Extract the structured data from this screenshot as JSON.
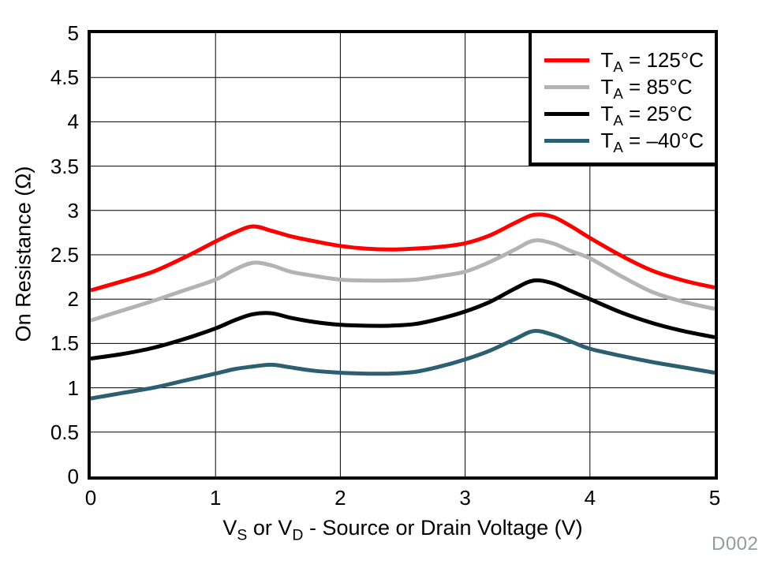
{
  "figure": {
    "id_label": "D002",
    "background": "#ffffff",
    "frame_color": "#000000",
    "gridline_color": "#000000"
  },
  "axes": {
    "x": {
      "title_parts": {
        "p1": "V",
        "s1": "S",
        "p2": " or V",
        "s2": "D",
        "p3": " - Source or Drain Voltage (V)"
      },
      "min": 0,
      "max": 5,
      "tick_labels": [
        "0",
        "1",
        "2",
        "3",
        "4",
        "5"
      ]
    },
    "y": {
      "title": "On Resistance (Ω)",
      "min": 0,
      "max": 5,
      "tick_labels": [
        "0",
        "0.5",
        "1",
        "1.5",
        "2",
        "2.5",
        "3",
        "3.5",
        "4",
        "4.5",
        "5"
      ]
    }
  },
  "legend": {
    "position": "top-right",
    "items": [
      {
        "name": "ta-125c",
        "prefix": "T",
        "sub": "A",
        "rest": " = 125°C",
        "color": "#ff0000"
      },
      {
        "name": "ta-85c",
        "prefix": "T",
        "sub": "A",
        "rest": " = 85°C",
        "color": "#b3b3b3"
      },
      {
        "name": "ta-25c",
        "prefix": "T",
        "sub": "A",
        "rest": " = 25°C",
        "color": "#000000"
      },
      {
        "name": "ta-minus40c",
        "prefix": "T",
        "sub": "A",
        "rest": " = –40°C",
        "color": "#2d5f73"
      }
    ]
  },
  "chart_data": {
    "type": "line",
    "title": "",
    "xlabel": "VS or VD - Source or Drain Voltage (V)",
    "ylabel": "On Resistance (Ω)",
    "xlim": [
      0,
      5
    ],
    "ylim": [
      0,
      5
    ],
    "x_tick_step": 1,
    "y_tick_step": 0.5,
    "grid": true,
    "legend_position": "top-right",
    "x": [
      0,
      0.25,
      0.5,
      0.75,
      1.0,
      1.15,
      1.3,
      1.45,
      1.6,
      1.8,
      2.0,
      2.2,
      2.4,
      2.6,
      2.8,
      3.0,
      3.2,
      3.4,
      3.55,
      3.7,
      3.85,
      4.0,
      4.25,
      4.5,
      4.75,
      5.0
    ],
    "series": [
      {
        "name": "TA = 125°C",
        "color": "#ff0000",
        "values": [
          2.1,
          2.2,
          2.31,
          2.47,
          2.65,
          2.75,
          2.82,
          2.77,
          2.71,
          2.65,
          2.6,
          2.57,
          2.56,
          2.57,
          2.59,
          2.63,
          2.72,
          2.86,
          2.95,
          2.93,
          2.82,
          2.69,
          2.49,
          2.32,
          2.21,
          2.13
        ]
      },
      {
        "name": "TA = 85°C",
        "color": "#b3b3b3",
        "values": [
          1.76,
          1.87,
          1.98,
          2.1,
          2.22,
          2.33,
          2.41,
          2.38,
          2.31,
          2.26,
          2.22,
          2.21,
          2.21,
          2.22,
          2.26,
          2.31,
          2.42,
          2.56,
          2.66,
          2.63,
          2.54,
          2.46,
          2.26,
          2.08,
          1.97,
          1.89
        ]
      },
      {
        "name": "TA = 25°C",
        "color": "#000000",
        "values": [
          1.33,
          1.38,
          1.45,
          1.55,
          1.67,
          1.76,
          1.83,
          1.84,
          1.79,
          1.74,
          1.71,
          1.7,
          1.7,
          1.72,
          1.78,
          1.86,
          1.97,
          2.12,
          2.21,
          2.18,
          2.09,
          2.0,
          1.85,
          1.73,
          1.64,
          1.57
        ]
      },
      {
        "name": "TA = −40°C",
        "color": "#2d5f73",
        "values": [
          0.88,
          0.94,
          1.0,
          1.08,
          1.16,
          1.21,
          1.24,
          1.26,
          1.23,
          1.19,
          1.17,
          1.16,
          1.16,
          1.18,
          1.24,
          1.32,
          1.42,
          1.55,
          1.64,
          1.6,
          1.52,
          1.44,
          1.36,
          1.29,
          1.23,
          1.17
        ]
      }
    ]
  }
}
